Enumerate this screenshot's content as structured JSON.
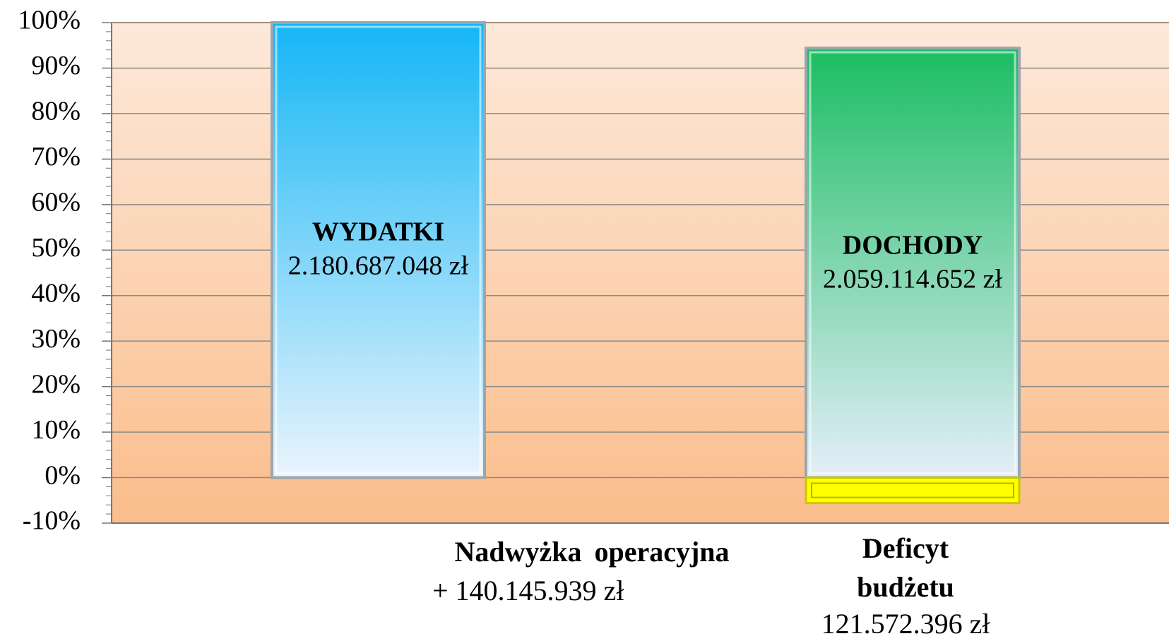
{
  "chart_data": {
    "type": "bar",
    "categories": [
      "WYDATKI",
      "DOCHODY"
    ],
    "values": [
      100,
      94.4
    ],
    "amounts": [
      "2.180.687.048 zł",
      "2.059.114.652 zł"
    ],
    "colors": [
      [
        "#14b6f5",
        "#eaf4fd"
      ],
      [
        "#1bbd62",
        "#e4eefa"
      ]
    ],
    "deficit": {
      "value": -5.6,
      "color": "#ffff00"
    },
    "annotations": [
      {
        "title": [
          "Nadwyżka operacyjna"
        ],
        "text": "+ 140.145.939 zł"
      },
      {
        "title": [
          "Deficyt",
          "budżetu"
        ],
        "text": "121.572.396 zł"
      }
    ],
    "ylim": [
      -10,
      100
    ],
    "yticks": [
      {
        "value": -10,
        "label": "-10%"
      },
      {
        "value": 0,
        "label": "0%"
      },
      {
        "value": 10,
        "label": "10%"
      },
      {
        "value": 20,
        "label": "20%"
      },
      {
        "value": 30,
        "label": "30%"
      },
      {
        "value": 40,
        "label": "40%"
      },
      {
        "value": 50,
        "label": "50%"
      },
      {
        "value": 60,
        "label": "60%"
      },
      {
        "value": 70,
        "label": "70%"
      },
      {
        "value": 80,
        "label": "80%"
      },
      {
        "value": 90,
        "label": "90%"
      },
      {
        "value": 100,
        "label": "100%"
      }
    ],
    "grid": true
  }
}
